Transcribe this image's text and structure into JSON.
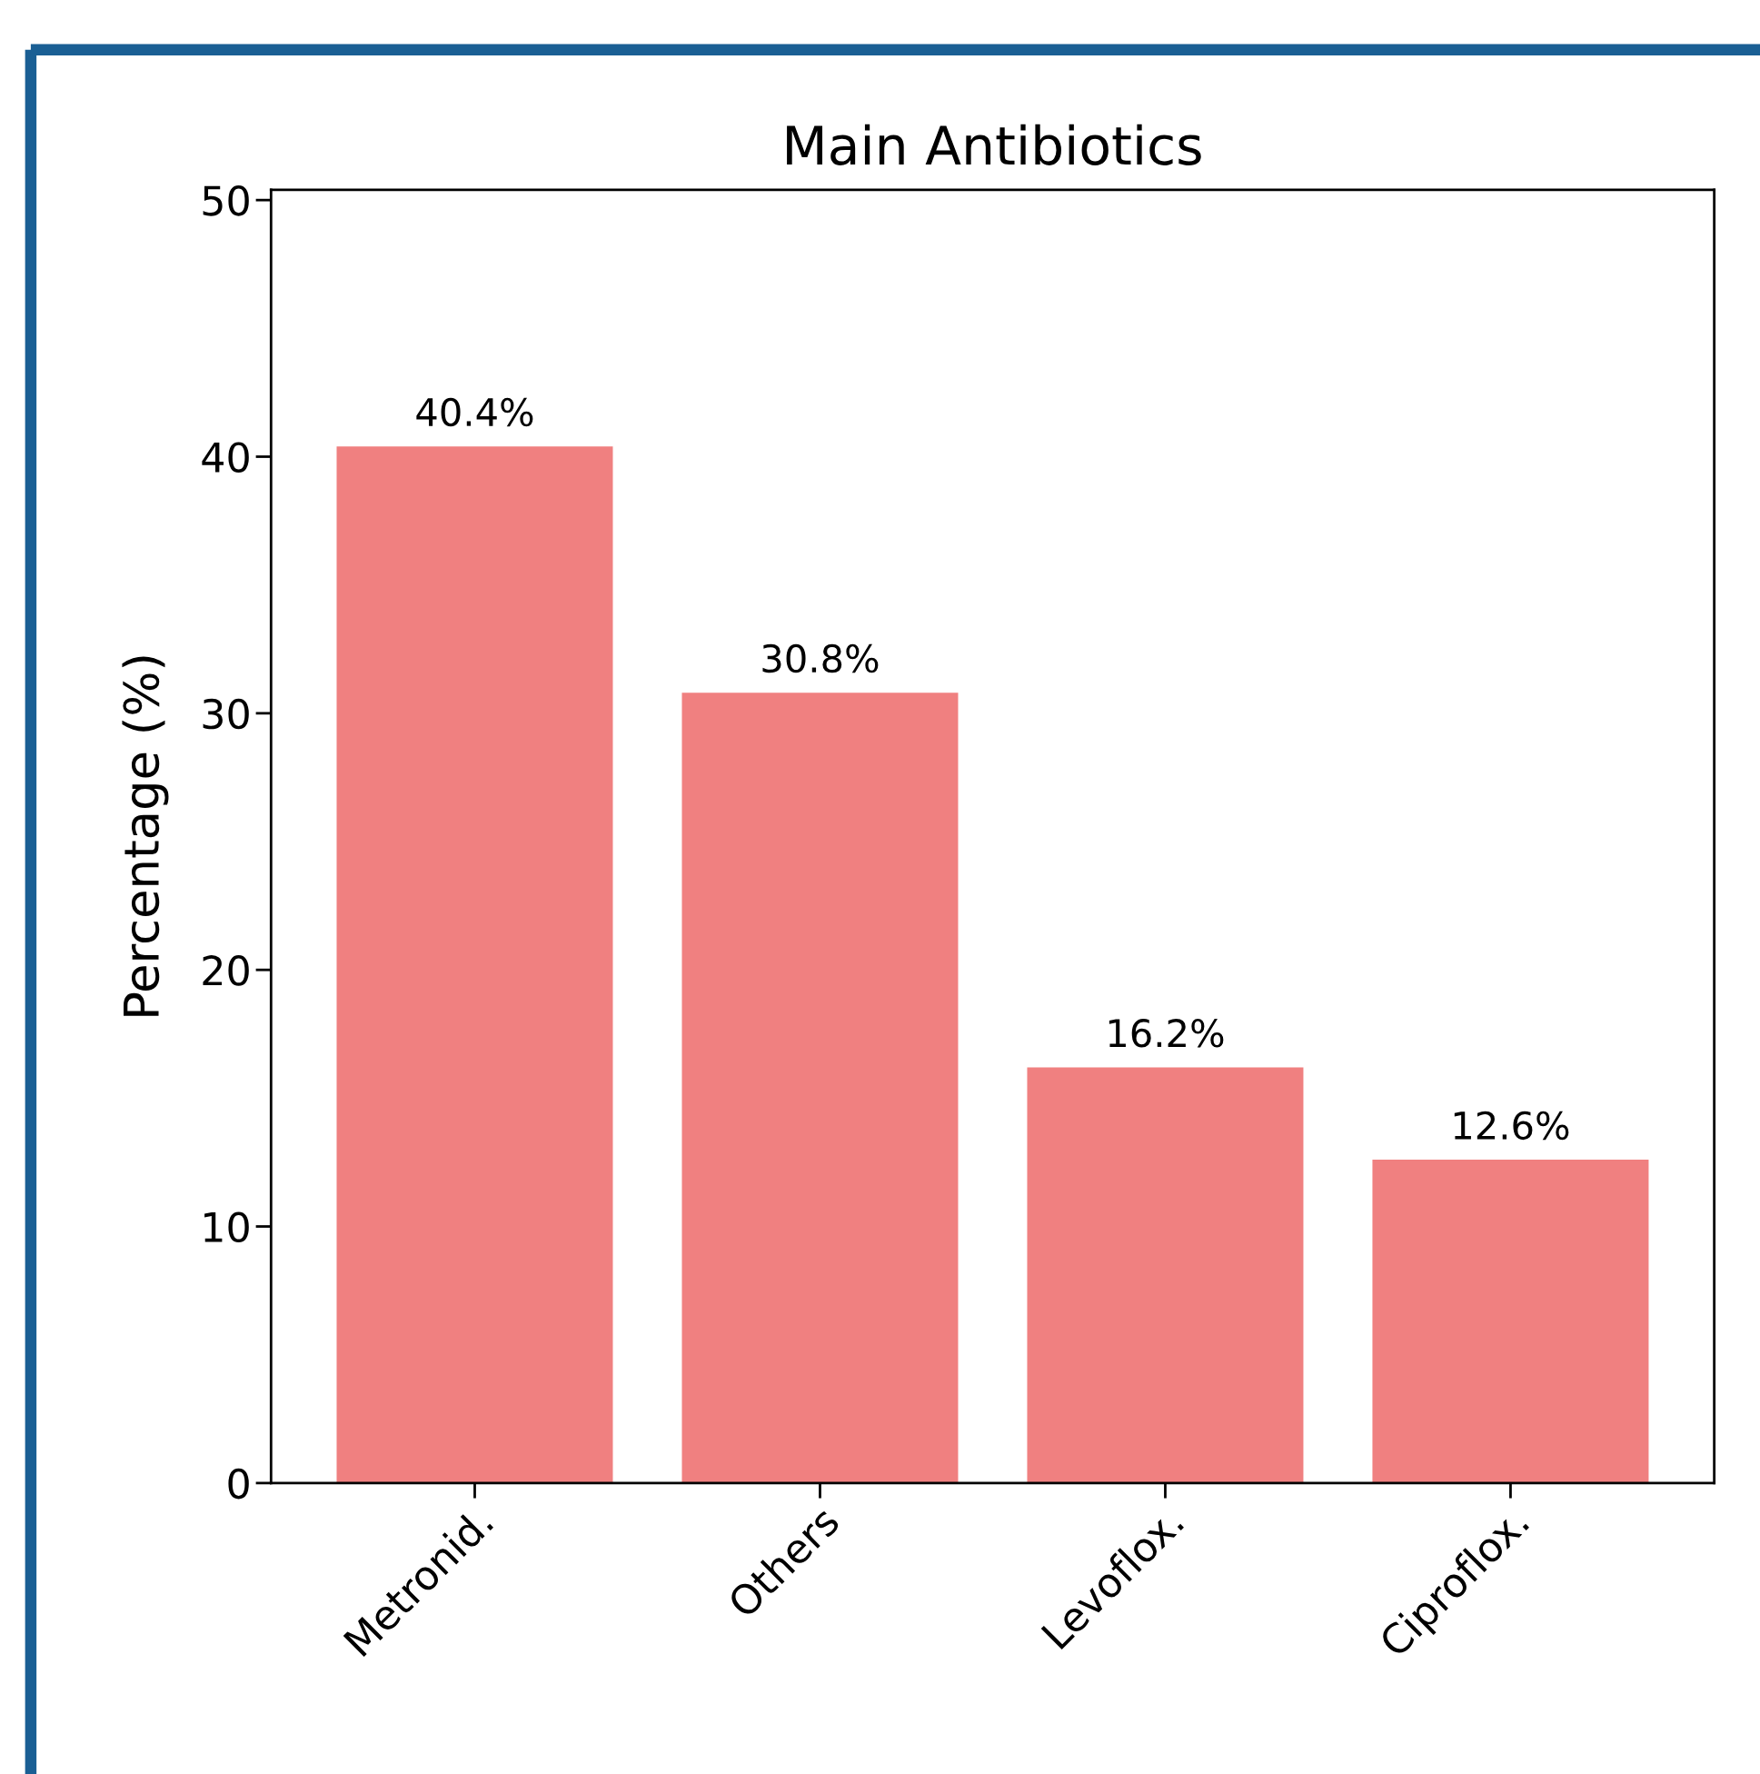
{
  "chart_data": {
    "type": "bar",
    "title": "Main Antibiotics",
    "ylabel": "Percentage (%)",
    "categories": [
      "Metronid.",
      "Others",
      "Levoflox.",
      "Ciproflox."
    ],
    "values": [
      40.4,
      30.8,
      16.2,
      12.6
    ],
    "value_labels": [
      "40.4%",
      "30.8%",
      "16.2%",
      "12.6%"
    ],
    "color": "#f08080",
    "ylim": [
      0,
      50.4
    ],
    "yticks": [
      0,
      10,
      20,
      30,
      40,
      50
    ],
    "grid": false,
    "legend": false
  }
}
